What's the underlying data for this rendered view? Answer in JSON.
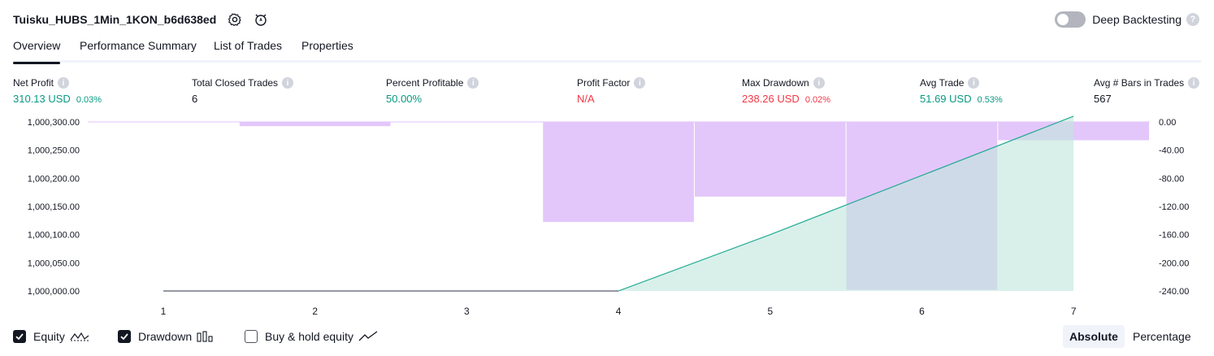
{
  "header": {
    "strategy_name": "Tuisku_HUBS_1Min_1KON_b6d638ed",
    "deep_backtesting_label": "Deep Backtesting",
    "deep_backtesting_enabled": false
  },
  "tabs": [
    {
      "label": "Overview",
      "active": true
    },
    {
      "label": "Performance Summary",
      "active": false
    },
    {
      "label": "List of Trades",
      "active": false
    },
    {
      "label": "Properties",
      "active": false
    }
  ],
  "metrics": [
    {
      "label": "Net Profit",
      "value": "310.13 USD",
      "pct": "0.03%",
      "tone": "pos"
    },
    {
      "label": "Total Closed Trades",
      "value": "6",
      "pct": "",
      "tone": "neu"
    },
    {
      "label": "Percent Profitable",
      "value": "50.00%",
      "pct": "",
      "tone": "pos"
    },
    {
      "label": "Profit Factor",
      "value": "N/A",
      "pct": "",
      "tone": "neg"
    },
    {
      "label": "Max Drawdown",
      "value": "238.26 USD",
      "pct": "0.02%",
      "tone": "neg"
    },
    {
      "label": "Avg Trade",
      "value": "51.69 USD",
      "pct": "0.53%",
      "tone": "pos"
    },
    {
      "label": "Avg # Bars in Trades",
      "value": "567",
      "pct": "",
      "tone": "neu"
    }
  ],
  "chart_data": {
    "type": "area",
    "x": [
      1,
      2,
      3,
      4,
      5,
      6,
      7
    ],
    "equity": {
      "name": "Equity",
      "values": [
        1000000.0,
        1000000.0,
        1000000.0,
        1000000.0,
        1000100.0,
        1000205.0,
        1000310.13
      ],
      "color": "#22ab94"
    },
    "drawdown": {
      "name": "Drawdown",
      "values": [
        0.0,
        -6.0,
        0.0,
        -142.0,
        -106.0,
        -238.26,
        -26.0
      ],
      "color": "#e1c4fb"
    },
    "buy_hold": {
      "name": "Buy & hold equity",
      "enabled": false
    },
    "left_ticks": [
      "1,000,300.00",
      "1,000,250.00",
      "1,000,200.00",
      "1,000,150.00",
      "1,000,100.00",
      "1,000,050.00",
      "1,000,000.00"
    ],
    "right_ticks": [
      "0.00",
      "-40.00",
      "-80.00",
      "-120.00",
      "-160.00",
      "-200.00",
      "-240.00"
    ],
    "x_ticks": [
      "1",
      "2",
      "3",
      "4",
      "5",
      "6",
      "7"
    ],
    "left_ylim": [
      1000000,
      1000300
    ],
    "right_ylim": [
      -240,
      0
    ]
  },
  "legend": {
    "equity_label": "Equity",
    "equity_checked": true,
    "drawdown_label": "Drawdown",
    "drawdown_checked": true,
    "buyhold_label": "Buy & hold equity",
    "buyhold_checked": false
  },
  "view_mode": {
    "absolute_label": "Absolute",
    "percentage_label": "Percentage",
    "selected": "Absolute"
  }
}
